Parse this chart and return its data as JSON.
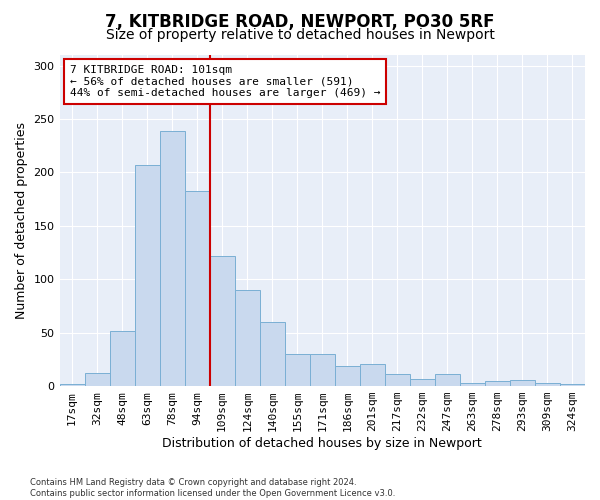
{
  "title1": "7, KITBRIDGE ROAD, NEWPORT, PO30 5RF",
  "title2": "Size of property relative to detached houses in Newport",
  "xlabel": "Distribution of detached houses by size in Newport",
  "ylabel": "Number of detached properties",
  "footnote": "Contains HM Land Registry data © Crown copyright and database right 2024.\nContains public sector information licensed under the Open Government Licence v3.0.",
  "bar_labels": [
    "17sqm",
    "32sqm",
    "48sqm",
    "63sqm",
    "78sqm",
    "94sqm",
    "109sqm",
    "124sqm",
    "140sqm",
    "155sqm",
    "171sqm",
    "186sqm",
    "201sqm",
    "217sqm",
    "232sqm",
    "247sqm",
    "263sqm",
    "278sqm",
    "293sqm",
    "309sqm",
    "324sqm"
  ],
  "bar_values": [
    2,
    12,
    52,
    207,
    239,
    183,
    122,
    90,
    60,
    30,
    30,
    19,
    21,
    11,
    7,
    11,
    3,
    5,
    6,
    3,
    2
  ],
  "bar_color": "#c9d9ee",
  "bar_edge_color": "#7aafd4",
  "vline_x_idx": 5,
  "vline_color": "#cc0000",
  "annotation_line1": "7 KITBRIDGE ROAD: 101sqm",
  "annotation_line2": "← 56% of detached houses are smaller (591)",
  "annotation_line3": "44% of semi-detached houses are larger (469) →",
  "annotation_box_color": "white",
  "annotation_box_edge_color": "#cc0000",
  "ylim": [
    0,
    310
  ],
  "yticks": [
    0,
    50,
    100,
    150,
    200,
    250,
    300
  ],
  "plot_bg_color": "#e8eef8",
  "title1_fontsize": 12,
  "title2_fontsize": 10,
  "xlabel_fontsize": 9,
  "ylabel_fontsize": 9,
  "tick_fontsize": 8,
  "annot_fontsize": 8
}
